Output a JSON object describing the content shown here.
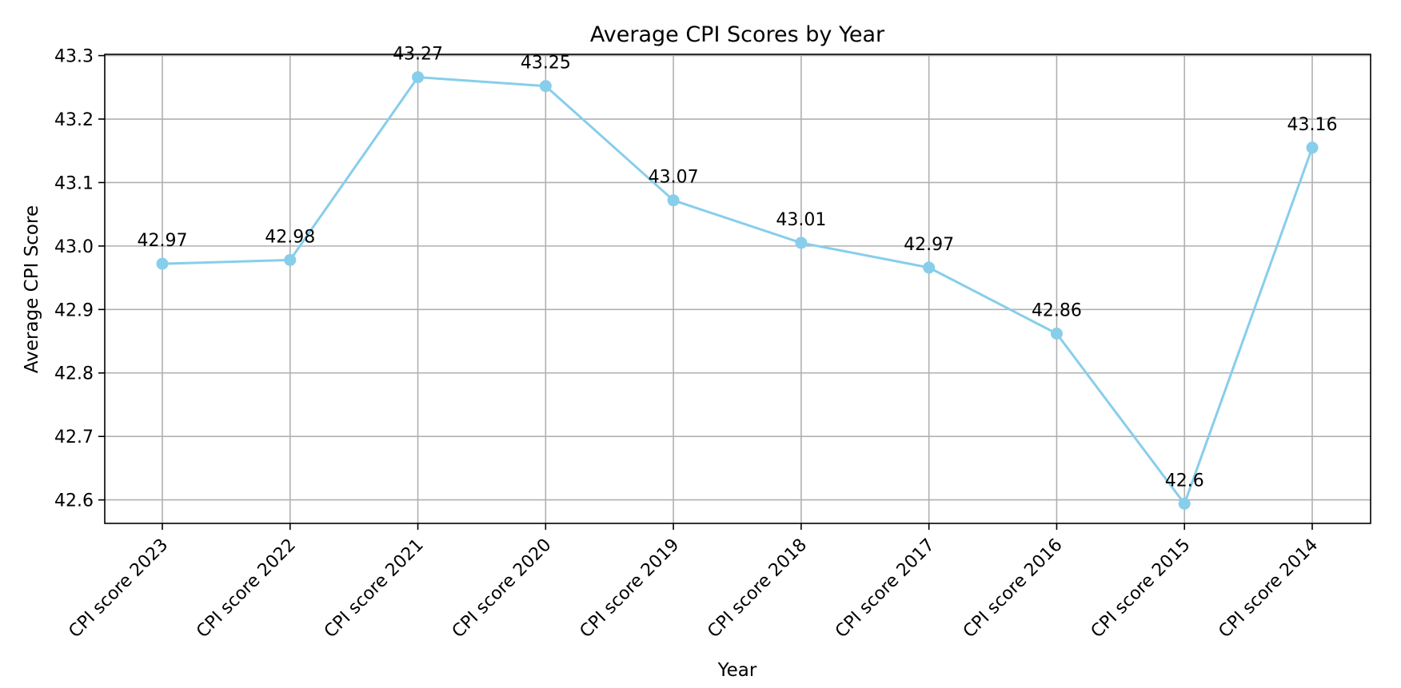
{
  "chart_data": {
    "type": "line",
    "title": "Average CPI Scores by Year",
    "xlabel": "Year",
    "ylabel": "Average CPI Score",
    "categories": [
      "CPI score 2023",
      "CPI score 2022",
      "CPI score 2021",
      "CPI score 2020",
      "CPI score 2019",
      "CPI score 2018",
      "CPI score 2017",
      "CPI score 2016",
      "CPI score 2015",
      "CPI score 2014"
    ],
    "values": [
      42.972,
      42.978,
      43.266,
      43.252,
      43.072,
      43.005,
      42.966,
      42.862,
      42.594,
      43.155
    ],
    "data_labels": [
      "42.97",
      "42.98",
      "43.27",
      "43.25",
      "43.07",
      "43.01",
      "42.97",
      "42.86",
      "42.6",
      "43.16"
    ],
    "yticks": [
      42.6,
      42.7,
      42.8,
      42.9,
      43.0,
      43.1,
      43.2,
      43.3
    ],
    "ytick_labels": [
      "42.6",
      "42.7",
      "42.8",
      "42.9",
      "43.0",
      "43.1",
      "43.2",
      "43.3"
    ],
    "ylim": [
      42.563,
      43.302
    ],
    "grid": true,
    "legend": false,
    "line_color": "#87ceeb",
    "marker": "circle"
  }
}
